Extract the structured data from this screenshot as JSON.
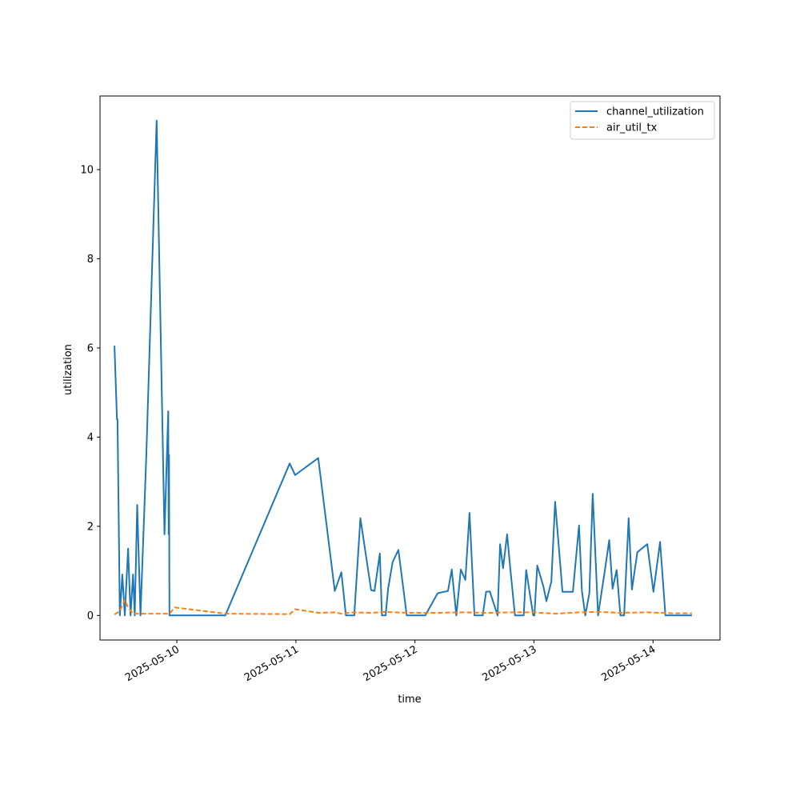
{
  "chart_data": {
    "type": "line",
    "title": "",
    "xlabel": "time",
    "ylabel": "utilization",
    "xlim": [
      "2025-05-09T08:30",
      "2025-05-14T13:30"
    ],
    "ylim": [
      -0.55,
      11.65
    ],
    "grid": false,
    "legend_position": "top-right",
    "x_ticks": [
      {
        "value": "2025-05-10T00:00",
        "label": "2025-05-10"
      },
      {
        "value": "2025-05-11T00:00",
        "label": "2025-05-11"
      },
      {
        "value": "2025-05-12T00:00",
        "label": "2025-05-12"
      },
      {
        "value": "2025-05-13T00:00",
        "label": "2025-05-13"
      },
      {
        "value": "2025-05-14T00:00",
        "label": "2025-05-14"
      }
    ],
    "y_ticks": [
      {
        "value": 0,
        "label": "0"
      },
      {
        "value": 2,
        "label": "2"
      },
      {
        "value": 4,
        "label": "4"
      },
      {
        "value": 6,
        "label": "6"
      },
      {
        "value": 8,
        "label": "8"
      },
      {
        "value": 10,
        "label": "10"
      }
    ],
    "series": [
      {
        "name": "channel_utilization",
        "color": "#1f77b4",
        "dash": "solid",
        "x": [
          "2025-05-09T11:25",
          "2025-05-09T11:55",
          "2025-05-09T12:02",
          "2025-05-09T12:30",
          "2025-05-09T13:00",
          "2025-05-09T13:30",
          "2025-05-09T14:10",
          "2025-05-09T14:40",
          "2025-05-09T15:10",
          "2025-05-09T15:30",
          "2025-05-09T16:00",
          "2025-05-09T16:40",
          "2025-05-09T17:50",
          "2025-05-09T19:55",
          "2025-05-09T21:30",
          "2025-05-09T22:15",
          "2025-05-09T22:20",
          "2025-05-09T22:25",
          "2025-05-09T22:30",
          "2025-05-09T23:00",
          "2025-05-09T23:35",
          "2025-05-10T09:45",
          "2025-05-10T22:45",
          "2025-05-10T23:50",
          "2025-05-11T04:30",
          "2025-05-11T07:50",
          "2025-05-11T09:10",
          "2025-05-11T10:05",
          "2025-05-11T11:00",
          "2025-05-11T11:45",
          "2025-05-11T13:00",
          "2025-05-11T15:10",
          "2025-05-11T15:50",
          "2025-05-11T16:55",
          "2025-05-11T17:20",
          "2025-05-11T18:05",
          "2025-05-11T18:35",
          "2025-05-11T19:30",
          "2025-05-11T20:40",
          "2025-05-11T21:40",
          "2025-05-11T22:20",
          "2025-05-12T00:00",
          "2025-05-12T02:05",
          "2025-05-12T04:35",
          "2025-05-12T06:40",
          "2025-05-12T07:25",
          "2025-05-12T08:20",
          "2025-05-12T09:15",
          "2025-05-12T10:10",
          "2025-05-12T11:00",
          "2025-05-12T12:00",
          "2025-05-12T13:40",
          "2025-05-12T14:20",
          "2025-05-12T15:05",
          "2025-05-12T16:40",
          "2025-05-12T17:10",
          "2025-05-12T17:45",
          "2025-05-12T18:35",
          "2025-05-12T19:10",
          "2025-05-12T20:10",
          "2025-05-12T21:55",
          "2025-05-12T22:25",
          "2025-05-12T23:50",
          "2025-05-13T00:05",
          "2025-05-13T00:40",
          "2025-05-13T01:55",
          "2025-05-13T02:30",
          "2025-05-13T03:30",
          "2025-05-13T04:15",
          "2025-05-13T05:45",
          "2025-05-13T07:50",
          "2025-05-13T09:05",
          "2025-05-13T09:40",
          "2025-05-13T10:20",
          "2025-05-13T11:10",
          "2025-05-13T11:50",
          "2025-05-13T12:55",
          "2025-05-13T14:20",
          "2025-05-13T15:10",
          "2025-05-13T15:50",
          "2025-05-13T16:40",
          "2025-05-13T17:25",
          "2025-05-13T18:10",
          "2025-05-13T19:05",
          "2025-05-13T19:45",
          "2025-05-13T20:50",
          "2025-05-13T22:50",
          "2025-05-14T00:05",
          "2025-05-14T01:25",
          "2025-05-14T02:30",
          "2025-05-14T03:55",
          "2025-05-14T05:45",
          "2025-05-14T07:50"
        ],
        "y": [
          6.05,
          4.4,
          4.4,
          0.0,
          0.92,
          0.0,
          1.5,
          0.0,
          0.92,
          0.0,
          2.48,
          0.0,
          3.6,
          11.1,
          1.82,
          4.58,
          1.82,
          3.6,
          0.0,
          0.0,
          0.0,
          0.0,
          3.41,
          3.15,
          3.53,
          0.55,
          0.97,
          0.0,
          0.0,
          0.0,
          2.18,
          0.57,
          0.55,
          1.39,
          0.0,
          0.0,
          0.6,
          1.2,
          1.47,
          0.6,
          0.0,
          0.0,
          0.0,
          0.5,
          0.55,
          1.03,
          0.0,
          1.03,
          0.8,
          2.3,
          0.0,
          0.0,
          0.53,
          0.54,
          0.0,
          1.6,
          1.06,
          1.82,
          1.12,
          0.0,
          0.0,
          1.02,
          0.0,
          0.0,
          1.12,
          0.64,
          0.32,
          0.76,
          2.55,
          0.53,
          0.53,
          2.02,
          0.55,
          0.0,
          0.5,
          2.73,
          0.0,
          1.05,
          1.69,
          0.6,
          1.02,
          0.0,
          0.0,
          2.18,
          0.58,
          1.42,
          1.6,
          0.53,
          1.65,
          0,
          0,
          0,
          0
        ]
      },
      {
        "name": "air_util_tx",
        "color": "#ff7f0e",
        "dash": "dashed",
        "x": [
          "2025-05-09T11:25",
          "2025-05-09T12:30",
          "2025-05-09T13:30",
          "2025-05-09T14:10",
          "2025-05-09T15:10",
          "2025-05-09T16:00",
          "2025-05-09T17:50",
          "2025-05-09T22:30",
          "2025-05-09T23:35",
          "2025-05-10T09:45",
          "2025-05-10T22:45",
          "2025-05-10T23:50",
          "2025-05-11T04:30",
          "2025-05-11T07:50",
          "2025-05-11T09:10",
          "2025-05-11T11:45",
          "2025-05-11T15:10",
          "2025-05-11T18:05",
          "2025-05-11T22:20",
          "2025-05-12T04:35",
          "2025-05-12T09:15",
          "2025-05-12T14:20",
          "2025-05-12T19:10",
          "2025-05-12T23:50",
          "2025-05-13T04:15",
          "2025-05-13T09:05",
          "2025-05-13T12:55",
          "2025-05-13T17:25",
          "2025-05-13T22:50",
          "2025-05-14T03:55",
          "2025-05-14T07:50"
        ],
        "y": [
          0.02,
          0.1,
          0.35,
          0.18,
          0.04,
          0.04,
          0.04,
          0.04,
          0.18,
          0.04,
          0.03,
          0.14,
          0.06,
          0.07,
          0.04,
          0.07,
          0.06,
          0.08,
          0.06,
          0.06,
          0.07,
          0.06,
          0.07,
          0.07,
          0.04,
          0.07,
          0.08,
          0.06,
          0.07,
          0.05,
          0.05
        ]
      }
    ]
  }
}
